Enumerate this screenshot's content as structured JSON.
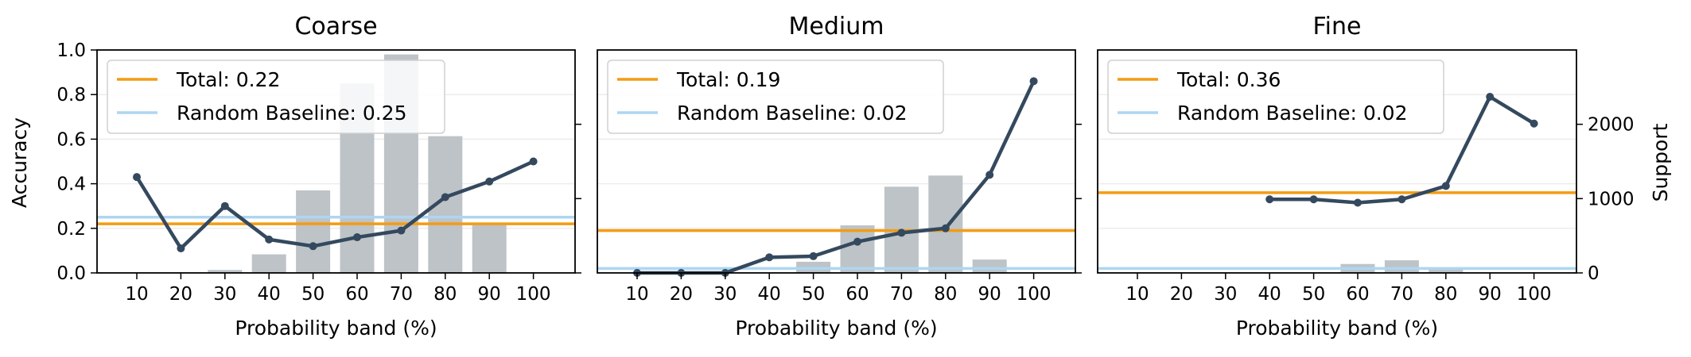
{
  "figure": {
    "ylabel_left": "Accuracy",
    "ylabel_right": "Support",
    "xlabel": "Probability band (%)",
    "colors": {
      "accuracy_line": "#34495e",
      "support_bars": "#bdc3c7",
      "total_line": "#f39c12",
      "random_line": "#aed6f1",
      "right_axis_label": "#95a5a6",
      "grid": "#ececec"
    },
    "bins": [
      "10",
      "20",
      "30",
      "40",
      "50",
      "60",
      "70",
      "80",
      "90",
      "100"
    ],
    "left_yticks": [
      "0.0",
      "0.2",
      "0.4",
      "0.6",
      "0.8",
      "1.0"
    ],
    "right_yticks": [
      "0",
      "1000",
      "2000"
    ]
  },
  "chart_data": [
    {
      "type": "bar",
      "title": "Coarse",
      "xlabel": "Probability band (%)",
      "ylabel": "Accuracy",
      "ylim": [
        0,
        1.0
      ],
      "support_ylim": [
        0,
        3000
      ],
      "categories": [
        "10",
        "20",
        "30",
        "40",
        "50",
        "60",
        "70",
        "80",
        "90",
        "100"
      ],
      "accuracy": [
        0.43,
        0.11,
        0.3,
        0.15,
        0.12,
        0.16,
        0.19,
        0.34,
        0.41,
        0.5
      ],
      "support": [
        0,
        0,
        40,
        250,
        1110,
        2550,
        2940,
        1840,
        670,
        0
      ],
      "total_accuracy": 0.22,
      "random_baseline": 0.25,
      "legend": [
        "Total: 0.22",
        "Random Baseline: 0.25"
      ],
      "legend_position": "top-left"
    },
    {
      "type": "bar",
      "title": "Medium",
      "xlabel": "Probability band (%)",
      "ylim": [
        0,
        1.0
      ],
      "support_ylim": [
        0,
        3000
      ],
      "categories": [
        "10",
        "20",
        "30",
        "40",
        "50",
        "60",
        "70",
        "80",
        "90",
        "100"
      ],
      "accuracy": [
        0.0,
        0.0,
        0.0,
        0.07,
        0.075,
        0.14,
        0.18,
        0.2,
        0.44,
        0.86
      ],
      "support": [
        0,
        0,
        0,
        0,
        150,
        640,
        1160,
        1310,
        180,
        0
      ],
      "total_accuracy": 0.19,
      "random_baseline": 0.02,
      "legend": [
        "Total: 0.19",
        "Random Baseline: 0.02"
      ],
      "legend_position": "top-left"
    },
    {
      "type": "bar",
      "title": "Fine",
      "xlabel": "Probability band (%)",
      "ylabel_right": "Support",
      "ylim": [
        0,
        1.0
      ],
      "support_ylim": [
        0,
        3000
      ],
      "categories": [
        "10",
        "20",
        "30",
        "40",
        "50",
        "60",
        "70",
        "80",
        "90",
        "100"
      ],
      "accuracy": [
        null,
        null,
        null,
        0.33,
        0.33,
        0.315,
        0.33,
        0.39,
        0.79,
        0.67
      ],
      "support": [
        0,
        0,
        0,
        0,
        0,
        120,
        170,
        60,
        0,
        0
      ],
      "total_accuracy": 0.36,
      "random_baseline": 0.02,
      "legend": [
        "Total: 0.36",
        "Random Baseline: 0.02"
      ],
      "legend_position": "top-left"
    }
  ]
}
